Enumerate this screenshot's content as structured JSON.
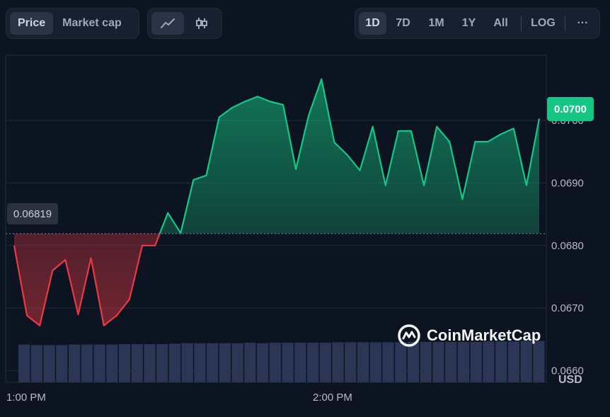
{
  "metric_tabs": [
    {
      "label": "Price",
      "active": true
    },
    {
      "label": "Market cap",
      "active": false
    }
  ],
  "chart_types": [
    {
      "icon": "line-chart-icon",
      "active": true
    },
    {
      "icon": "candlestick-chart-icon",
      "active": false
    }
  ],
  "ranges": [
    {
      "label": "1D",
      "active": true
    },
    {
      "label": "7D",
      "active": false
    },
    {
      "label": "1M",
      "active": false
    },
    {
      "label": "1Y",
      "active": false
    },
    {
      "label": "All",
      "active": false
    }
  ],
  "log_label": "LOG",
  "more_label": "···",
  "watermark": "CoinMarketCap",
  "currency": "USD",
  "current_price_label": "0.0700",
  "baseline_label": "0.06819",
  "colors": {
    "up": "#16c784",
    "down": "#ea3943",
    "volume": "#2b3556",
    "grid": "#222b3a"
  },
  "chart_data": {
    "type": "area",
    "baseline": 0.06819,
    "x_ticks": [
      "1:00 PM",
      "2:00 PM"
    ],
    "y_ticks": [
      "0.0700",
      "0.0690",
      "0.0680",
      "0.0670",
      "0.0660"
    ],
    "ylim": [
      0.06587,
      0.07103
    ],
    "grid": true,
    "series": [
      {
        "values": [
          0.068,
          0.06688,
          0.06672,
          0.0676,
          0.06777,
          0.0669,
          0.0678,
          0.06672,
          0.06688,
          0.06714,
          0.068,
          0.068,
          0.06852,
          0.0682,
          0.06905,
          0.06912,
          0.07005,
          0.0702,
          0.0703,
          0.07038,
          0.0703,
          0.07025,
          0.06922,
          0.07008,
          0.07066,
          0.06965,
          0.06945,
          0.0692,
          0.0699,
          0.06896,
          0.06983,
          0.06983,
          0.06896,
          0.0699,
          0.06966,
          0.06874,
          0.06966,
          0.06966,
          0.06978,
          0.06987,
          0.06896,
          0.07003
        ]
      }
    ],
    "volume": [
      0.82,
      0.81,
      0.81,
      0.81,
      0.82,
      0.82,
      0.82,
      0.82,
      0.83,
      0.83,
      0.83,
      0.83,
      0.84,
      0.85,
      0.85,
      0.85,
      0.85,
      0.85,
      0.86,
      0.85,
      0.86,
      0.86,
      0.86,
      0.86,
      0.86,
      0.87,
      0.87,
      0.87,
      0.87,
      0.87,
      0.87,
      0.88,
      0.88,
      0.88,
      0.88,
      0.88,
      0.88,
      0.89,
      0.89,
      0.89,
      0.9,
      0.9
    ]
  }
}
